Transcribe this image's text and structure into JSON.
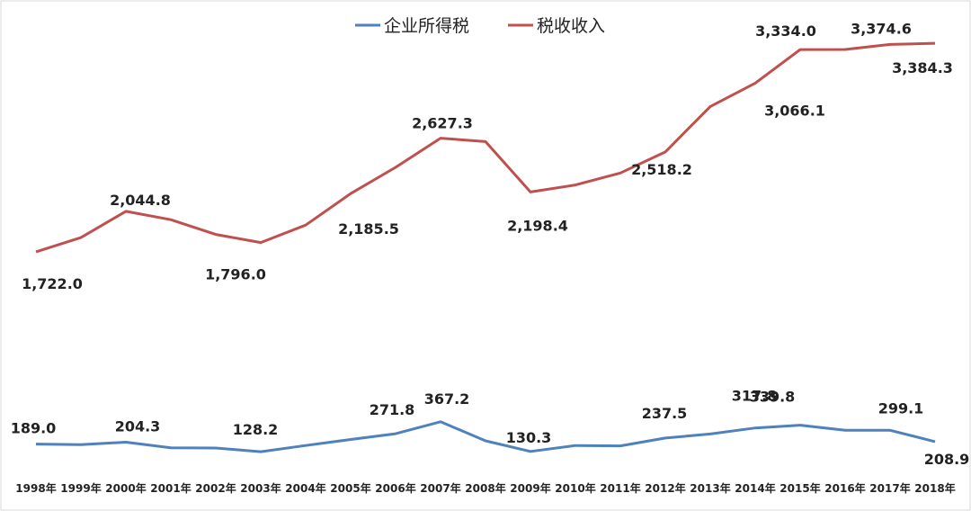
{
  "chart_data": {
    "type": "line",
    "title": "",
    "xlabel": "",
    "ylabel": "",
    "categories": [
      "1998年",
      "1999年",
      "2000年",
      "2001年",
      "2002年",
      "2003年",
      "2004年",
      "2005年",
      "2006年",
      "2007年",
      "2008年",
      "2009年",
      "2010年",
      "2011年",
      "2012年",
      "2013年",
      "2014年",
      "2015年",
      "2016年",
      "2017年",
      "2018年"
    ],
    "ylim": [
      0,
      3600
    ],
    "grid": false,
    "legend": "top-center",
    "series": [
      {
        "name": "企业所得税",
        "color": "#4F81BD",
        "values": [
          189.0,
          185.0,
          204.3,
          160.0,
          158.0,
          128.2,
          178.0,
          226.0,
          271.8,
          367.2,
          215.0,
          130.3,
          178.0,
          175.0,
          237.5,
          270.0,
          317.8,
          339.8,
          300.0,
          299.1,
          208.9
        ]
      },
      {
        "name": "税收收入",
        "color": "#C0504D",
        "values": [
          1722.0,
          1835.0,
          2044.8,
          1978.0,
          1860.0,
          1796.0,
          1935.0,
          2185.5,
          2395.0,
          2627.3,
          2600.0,
          2198.4,
          2255.0,
          2350.0,
          2518.2,
          2880.0,
          3066.1,
          3334.0,
          3335.0,
          3374.6,
          3384.3
        ]
      }
    ],
    "data_labels": [
      {
        "series": 1,
        "index": 0,
        "text": "1,722.0"
      },
      {
        "series": 1,
        "index": 2,
        "text": "2,044.8"
      },
      {
        "series": 1,
        "index": 5,
        "text": "1,796.0"
      },
      {
        "series": 1,
        "index": 7,
        "text": "2,185.5"
      },
      {
        "series": 1,
        "index": 9,
        "text": "2,627.3"
      },
      {
        "series": 1,
        "index": 11,
        "text": "2,198.4"
      },
      {
        "series": 1,
        "index": 14,
        "text": "2,518.2"
      },
      {
        "series": 1,
        "index": 16,
        "text": "3,066.1"
      },
      {
        "series": 1,
        "index": 17,
        "text": "3,334.0"
      },
      {
        "series": 1,
        "index": 19,
        "text": "3,374.6"
      },
      {
        "series": 1,
        "index": 20,
        "text": "3,384.3"
      },
      {
        "series": 0,
        "index": 0,
        "text": "189.0"
      },
      {
        "series": 0,
        "index": 2,
        "text": "204.3"
      },
      {
        "series": 0,
        "index": 5,
        "text": "128.2"
      },
      {
        "series": 0,
        "index": 8,
        "text": "271.8"
      },
      {
        "series": 0,
        "index": 9,
        "text": "367.2"
      },
      {
        "series": 0,
        "index": 11,
        "text": "130.3"
      },
      {
        "series": 0,
        "index": 14,
        "text": "237.5"
      },
      {
        "series": 0,
        "index": 16,
        "text": "317.8"
      },
      {
        "series": 0,
        "index": 17,
        "text": "339.8"
      },
      {
        "series": 0,
        "index": 19,
        "text": "299.1"
      },
      {
        "series": 0,
        "index": 20,
        "text": "208.9"
      }
    ]
  }
}
